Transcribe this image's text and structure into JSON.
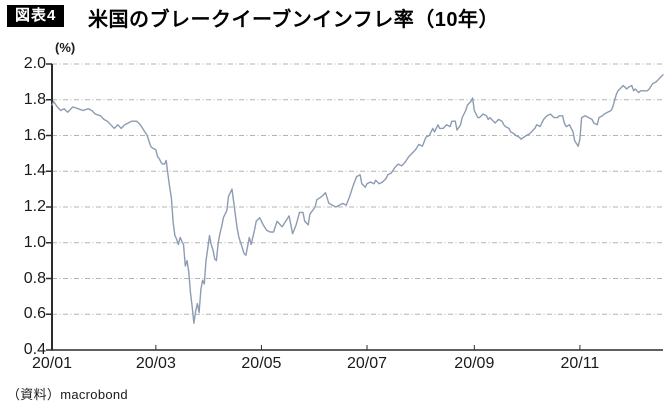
{
  "header": {
    "badge": "図表4",
    "title": "米国のブレークイーブンインフレ率（10年）"
  },
  "source": "（資料）macrobond",
  "chart_data": {
    "type": "line",
    "title": "米国のブレークイーブンインフレ率（10年）",
    "ylabel": "(%)",
    "xlabel": "",
    "ylim": [
      0.4,
      2.0
    ],
    "ytick_step": 0.2,
    "yticks": [
      "2.0",
      "1.8",
      "1.6",
      "1.4",
      "1.2",
      "1.0",
      "0.8",
      "0.6",
      "0.4"
    ],
    "xticks": [
      {
        "label": "20/01",
        "day": 1
      },
      {
        "label": "20/03",
        "day": 61
      },
      {
        "label": "20/05",
        "day": 122
      },
      {
        "label": "20/07",
        "day": 183
      },
      {
        "label": "20/09",
        "day": 245
      },
      {
        "label": "20/11",
        "day": 306
      }
    ],
    "x_domain_days": [
      1,
      354
    ],
    "grid": "horizontal dash-dot",
    "legend": "none",
    "line_color": "#8d9cb2",
    "grid_color": "#b3b3b3",
    "axis_color": "#2b2b2b",
    "series": [
      {
        "name": "米国ブレークイーブンインフレ率（10年）",
        "unit": "%",
        "points": [
          [
            1,
            1.77
          ],
          [
            2,
            1.79
          ],
          [
            4,
            1.76
          ],
          [
            6,
            1.74
          ],
          [
            8,
            1.75
          ],
          [
            10,
            1.73
          ],
          [
            13,
            1.76
          ],
          [
            16,
            1.75
          ],
          [
            19,
            1.74
          ],
          [
            22,
            1.75
          ],
          [
            24,
            1.74
          ],
          [
            26,
            1.72
          ],
          [
            29,
            1.71
          ],
          [
            31,
            1.69
          ],
          [
            33,
            1.68
          ],
          [
            35,
            1.66
          ],
          [
            37,
            1.64
          ],
          [
            39,
            1.66
          ],
          [
            41,
            1.64
          ],
          [
            43,
            1.66
          ],
          [
            45,
            1.67
          ],
          [
            47,
            1.68
          ],
          [
            50,
            1.68
          ],
          [
            52,
            1.66
          ],
          [
            54,
            1.63
          ],
          [
            56,
            1.6
          ],
          [
            57,
            1.57
          ],
          [
            58,
            1.54
          ],
          [
            59,
            1.53
          ],
          [
            61,
            1.52
          ],
          [
            62,
            1.48
          ],
          [
            63,
            1.47
          ],
          [
            64,
            1.45
          ],
          [
            65,
            1.44
          ],
          [
            66,
            1.44
          ],
          [
            67,
            1.46
          ],
          [
            68,
            1.38
          ],
          [
            69,
            1.31
          ],
          [
            70,
            1.25
          ],
          [
            71,
            1.11
          ],
          [
            72,
            1.04
          ],
          [
            73,
            1.02
          ],
          [
            74,
            0.99
          ],
          [
            75,
            1.03
          ],
          [
            76,
            1.01
          ],
          [
            77,
            0.99
          ],
          [
            78,
            0.87
          ],
          [
            79,
            0.9
          ],
          [
            80,
            0.84
          ],
          [
            81,
            0.72
          ],
          [
            82,
            0.64
          ],
          [
            83,
            0.55
          ],
          [
            84,
            0.62
          ],
          [
            85,
            0.66
          ],
          [
            86,
            0.61
          ],
          [
            87,
            0.74
          ],
          [
            88,
            0.79
          ],
          [
            89,
            0.77
          ],
          [
            90,
            0.9
          ],
          [
            91,
            0.97
          ],
          [
            92,
            1.04
          ],
          [
            93,
            0.99
          ],
          [
            94,
            0.96
          ],
          [
            95,
            0.91
          ],
          [
            96,
            0.9
          ],
          [
            97,
            1.0
          ],
          [
            98,
            1.05
          ],
          [
            99,
            1.09
          ],
          [
            100,
            1.14
          ],
          [
            102,
            1.18
          ],
          [
            103,
            1.26
          ],
          [
            104,
            1.28
          ],
          [
            105,
            1.3
          ],
          [
            107,
            1.15
          ],
          [
            108,
            1.08
          ],
          [
            109,
            1.03
          ],
          [
            110,
            1.0
          ],
          [
            111,
            0.97
          ],
          [
            112,
            0.94
          ],
          [
            113,
            0.93
          ],
          [
            115,
            1.03
          ],
          [
            116,
            0.99
          ],
          [
            118,
            1.07
          ],
          [
            119,
            1.12
          ],
          [
            121,
            1.14
          ],
          [
            123,
            1.1
          ],
          [
            125,
            1.07
          ],
          [
            127,
            1.06
          ],
          [
            129,
            1.06
          ],
          [
            131,
            1.12
          ],
          [
            132,
            1.11
          ],
          [
            134,
            1.09
          ],
          [
            136,
            1.12
          ],
          [
            138,
            1.15
          ],
          [
            140,
            1.05
          ],
          [
            142,
            1.1
          ],
          [
            144,
            1.17
          ],
          [
            146,
            1.17
          ],
          [
            147,
            1.12
          ],
          [
            149,
            1.1
          ],
          [
            150,
            1.16
          ],
          [
            153,
            1.2
          ],
          [
            154,
            1.24
          ],
          [
            157,
            1.26
          ],
          [
            159,
            1.28
          ],
          [
            161,
            1.22
          ],
          [
            163,
            1.21
          ],
          [
            165,
            1.2
          ],
          [
            167,
            1.21
          ],
          [
            169,
            1.22
          ],
          [
            171,
            1.21
          ],
          [
            173,
            1.26
          ],
          [
            175,
            1.32
          ],
          [
            177,
            1.37
          ],
          [
            179,
            1.38
          ],
          [
            180,
            1.33
          ],
          [
            182,
            1.31
          ],
          [
            183,
            1.33
          ],
          [
            185,
            1.34
          ],
          [
            187,
            1.33
          ],
          [
            188,
            1.35
          ],
          [
            190,
            1.33
          ],
          [
            192,
            1.34
          ],
          [
            194,
            1.36
          ],
          [
            195,
            1.38
          ],
          [
            197,
            1.39
          ],
          [
            199,
            1.42
          ],
          [
            200,
            1.43
          ],
          [
            201,
            1.44
          ],
          [
            203,
            1.43
          ],
          [
            205,
            1.45
          ],
          [
            207,
            1.48
          ],
          [
            209,
            1.5
          ],
          [
            211,
            1.52
          ],
          [
            213,
            1.55
          ],
          [
            215,
            1.54
          ],
          [
            217,
            1.59
          ],
          [
            219,
            1.6
          ],
          [
            221,
            1.64
          ],
          [
            222,
            1.62
          ],
          [
            224,
            1.66
          ],
          [
            225,
            1.64
          ],
          [
            227,
            1.64
          ],
          [
            229,
            1.66
          ],
          [
            231,
            1.65
          ],
          [
            232,
            1.68
          ],
          [
            234,
            1.68
          ],
          [
            235,
            1.63
          ],
          [
            237,
            1.66
          ],
          [
            238,
            1.7
          ],
          [
            240,
            1.74
          ],
          [
            241,
            1.77
          ],
          [
            243,
            1.79
          ],
          [
            244,
            1.81
          ],
          [
            245,
            1.74
          ],
          [
            247,
            1.7
          ],
          [
            248,
            1.7
          ],
          [
            250,
            1.72
          ],
          [
            252,
            1.71
          ],
          [
            253,
            1.69
          ],
          [
            254,
            1.7
          ],
          [
            256,
            1.68
          ],
          [
            257,
            1.67
          ],
          [
            259,
            1.69
          ],
          [
            261,
            1.68
          ],
          [
            262,
            1.66
          ],
          [
            263,
            1.65
          ],
          [
            265,
            1.64
          ],
          [
            266,
            1.62
          ],
          [
            268,
            1.61
          ],
          [
            269,
            1.6
          ],
          [
            271,
            1.59
          ],
          [
            272,
            1.58
          ],
          [
            275,
            1.6
          ],
          [
            277,
            1.61
          ],
          [
            278,
            1.62
          ],
          [
            280,
            1.64
          ],
          [
            281,
            1.66
          ],
          [
            283,
            1.65
          ],
          [
            284,
            1.67
          ],
          [
            285,
            1.69
          ],
          [
            287,
            1.71
          ],
          [
            289,
            1.72
          ],
          [
            291,
            1.7
          ],
          [
            293,
            1.7
          ],
          [
            294,
            1.71
          ],
          [
            296,
            1.71
          ],
          [
            297,
            1.67
          ],
          [
            298,
            1.65
          ],
          [
            300,
            1.66
          ],
          [
            301,
            1.64
          ],
          [
            302,
            1.62
          ],
          [
            303,
            1.57
          ],
          [
            305,
            1.54
          ],
          [
            306,
            1.58
          ],
          [
            307,
            1.7
          ],
          [
            309,
            1.71
          ],
          [
            311,
            1.7
          ],
          [
            313,
            1.69
          ],
          [
            314,
            1.67
          ],
          [
            316,
            1.66
          ],
          [
            317,
            1.7
          ],
          [
            319,
            1.71
          ],
          [
            320,
            1.72
          ],
          [
            322,
            1.73
          ],
          [
            324,
            1.74
          ],
          [
            325,
            1.76
          ],
          [
            327,
            1.83
          ],
          [
            328,
            1.85
          ],
          [
            330,
            1.87
          ],
          [
            331,
            1.88
          ],
          [
            333,
            1.86
          ],
          [
            334,
            1.87
          ],
          [
            336,
            1.88
          ],
          [
            337,
            1.85
          ],
          [
            338,
            1.86
          ],
          [
            340,
            1.84
          ],
          [
            341,
            1.85
          ],
          [
            343,
            1.85
          ],
          [
            345,
            1.85
          ],
          [
            346,
            1.86
          ],
          [
            348,
            1.89
          ],
          [
            350,
            1.9
          ],
          [
            352,
            1.92
          ],
          [
            353,
            1.93
          ],
          [
            354,
            1.94
          ]
        ]
      }
    ]
  }
}
